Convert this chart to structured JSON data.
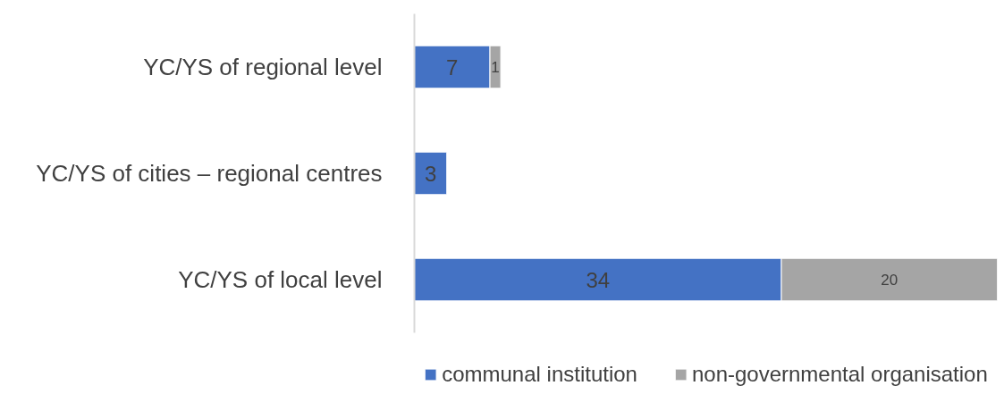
{
  "chart_data": {
    "type": "bar",
    "orientation": "horizontal",
    "stacked": true,
    "categories": [
      "YC/YS of regional level",
      "YC/YS of cities – regional centres",
      "YC/YS of local level"
    ],
    "series": [
      {
        "name": "communal institution",
        "color": "#4472c4",
        "values": [
          7,
          3,
          34
        ]
      },
      {
        "name": "non-governmental organisation",
        "color": "#a5a5a5",
        "values": [
          1,
          null,
          20
        ]
      }
    ],
    "data_labels": true,
    "legend": "bottom",
    "grid": false
  }
}
